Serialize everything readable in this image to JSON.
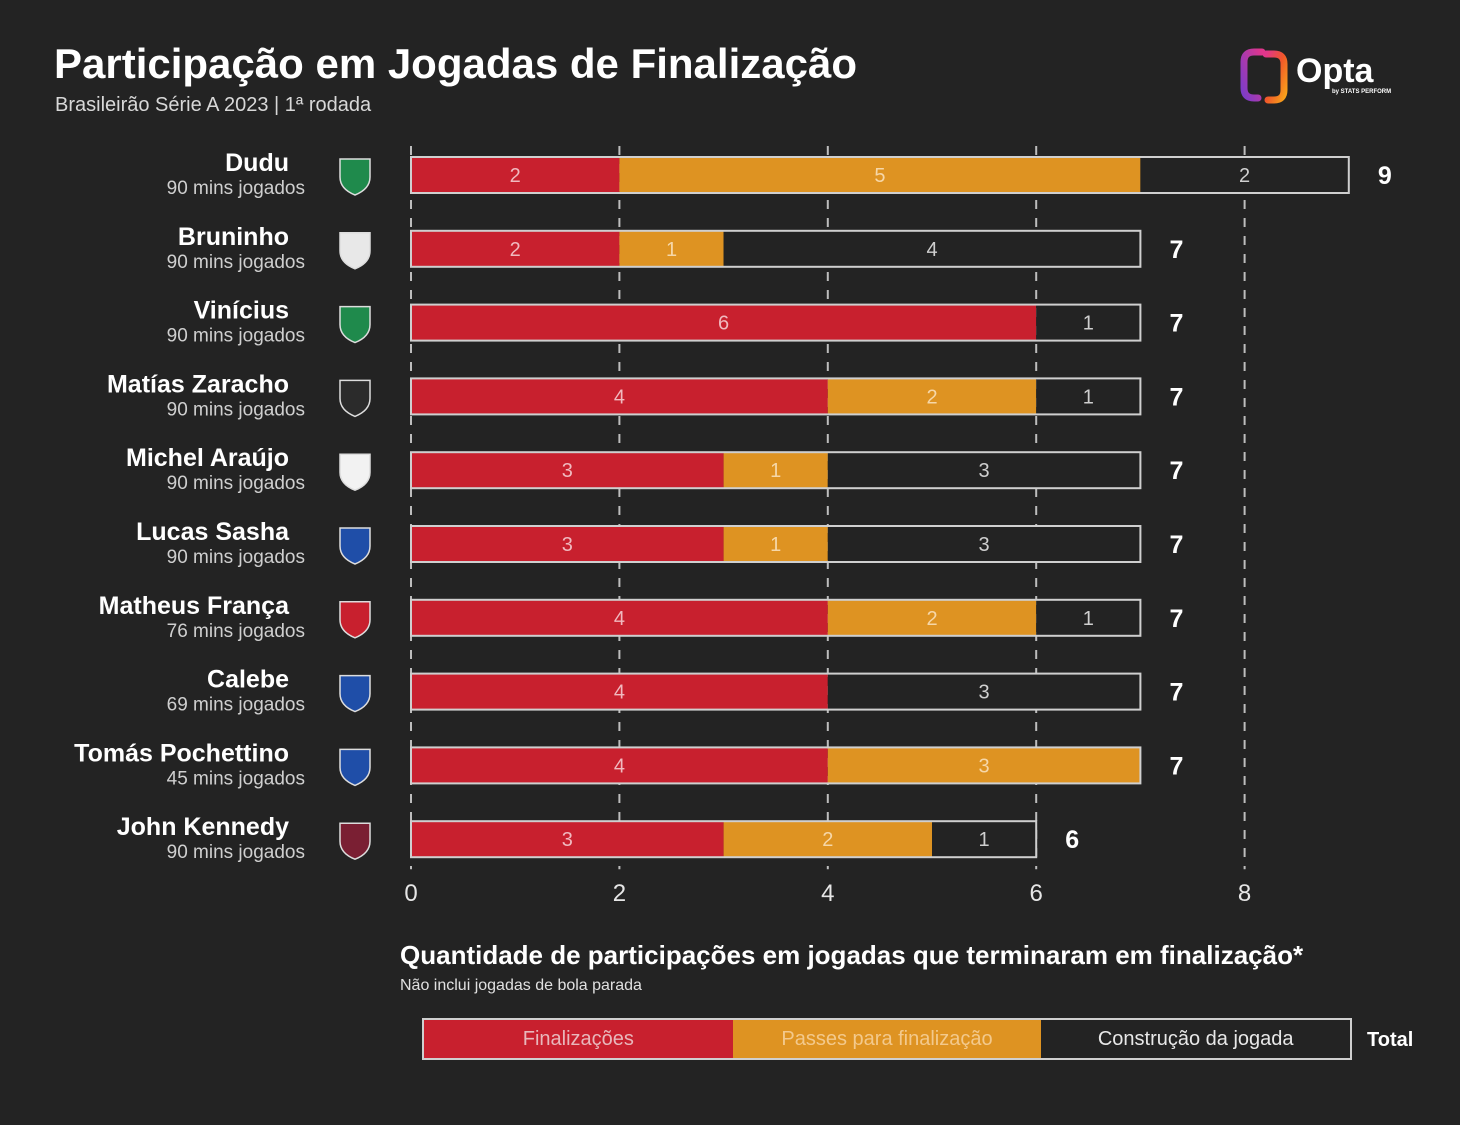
{
  "header": {
    "title": "Participação em Jogadas de Finalização",
    "subtitle": "Brasileirão Série A 2023 | 1ª rodada",
    "logo_text": "Opta",
    "logo_sub": "by STATS PERFORM"
  },
  "colors": {
    "background": "#232323",
    "finalizacoes": "#c8202e",
    "passes": "#de9322",
    "construcao": "#232323",
    "outline": "#cfcfcf",
    "gridline": "#bdbdbd"
  },
  "axis": {
    "title": "Quantidade de participações em jogadas que terminaram em finalização*",
    "note": "Não inclui jogadas de bola parada"
  },
  "legend": {
    "items": [
      "Finalizações",
      "Passes para finalização",
      "Construção da jogada"
    ],
    "total_label": "Total"
  },
  "chart_data": {
    "type": "bar",
    "orientation": "horizontal",
    "stacked": true,
    "xlim": [
      0,
      8
    ],
    "xticks": [
      0,
      2,
      4,
      6,
      8
    ],
    "grid": "vertical dashed",
    "series": [
      {
        "name": "Finalizações",
        "color": "#c8202e"
      },
      {
        "name": "Passes para finalização",
        "color": "#de9322"
      },
      {
        "name": "Construção da jogada",
        "color": "#232323"
      }
    ],
    "players": [
      {
        "name": "Dudu",
        "minutes": "90 mins jogados",
        "club_icon": "palmeiras-crest-icon",
        "values": [
          2,
          5,
          2
        ],
        "total": 9
      },
      {
        "name": "Bruninho",
        "minutes": "90 mins jogados",
        "club_icon": "bragantino-crest-icon",
        "values": [
          2,
          1,
          4
        ],
        "total": 7
      },
      {
        "name": "Vinícius",
        "minutes": "90 mins jogados",
        "club_icon": "goias-crest-icon",
        "values": [
          6,
          0,
          1
        ],
        "total": 7
      },
      {
        "name": "Matías Zaracho",
        "minutes": "90 mins jogados",
        "club_icon": "atletico-mg-crest-icon",
        "values": [
          4,
          2,
          1
        ],
        "total": 7
      },
      {
        "name": "Michel Araújo",
        "minutes": "90 mins jogados",
        "club_icon": "sao-paulo-crest-icon",
        "values": [
          3,
          1,
          3
        ],
        "total": 7
      },
      {
        "name": "Lucas Sasha",
        "minutes": "90 mins jogados",
        "club_icon": "fortaleza-crest-icon",
        "values": [
          3,
          1,
          3
        ],
        "total": 7
      },
      {
        "name": "Matheus França",
        "minutes": "76 mins jogados",
        "club_icon": "flamengo-crest-icon",
        "values": [
          4,
          2,
          1
        ],
        "total": 7
      },
      {
        "name": "Calebe",
        "minutes": "69 mins jogados",
        "club_icon": "fortaleza-crest-icon",
        "values": [
          4,
          0,
          3
        ],
        "total": 7
      },
      {
        "name": "Tomás Pochettino",
        "minutes": "45 mins jogados",
        "club_icon": "fortaleza-crest-icon",
        "values": [
          4,
          3,
          0
        ],
        "total": 7
      },
      {
        "name": "John Kennedy",
        "minutes": "90 mins jogados",
        "club_icon": "fluminense-crest-icon",
        "values": [
          3,
          2,
          1
        ],
        "total": 6
      }
    ]
  }
}
